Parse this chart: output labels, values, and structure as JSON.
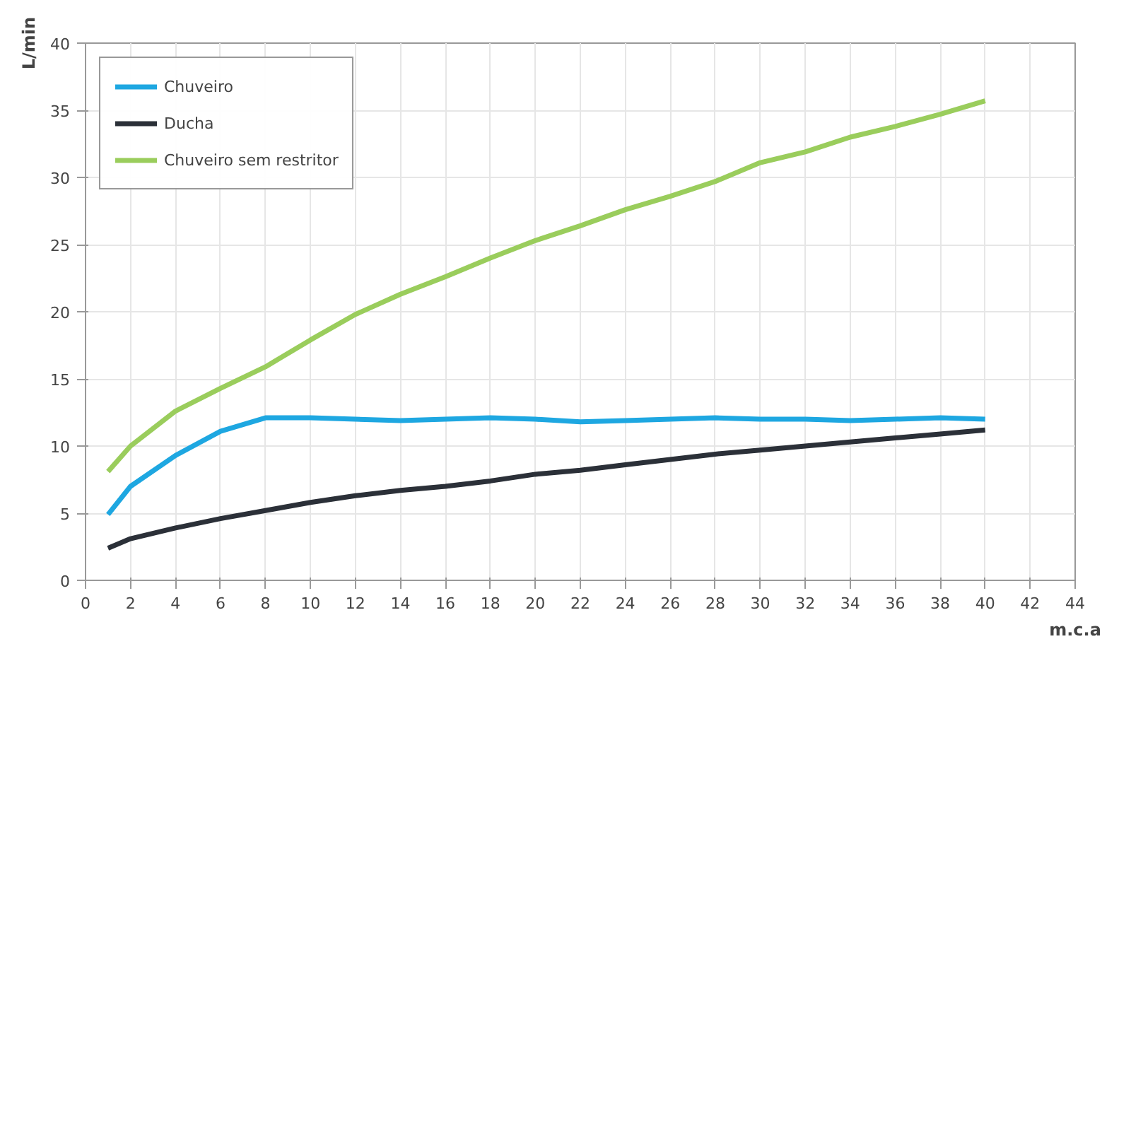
{
  "chart_data": {
    "type": "line",
    "xlabel": "m.c.a",
    "ylabel": "L/min",
    "x": [
      1,
      2,
      4,
      6,
      8,
      10,
      12,
      14,
      16,
      18,
      20,
      22,
      24,
      26,
      28,
      30,
      32,
      34,
      36,
      38,
      40
    ],
    "series": [
      {
        "name": "Chuveiro",
        "color": "#1ea7e1",
        "values": [
          4.9,
          7.0,
          9.3,
          11.1,
          12.1,
          12.1,
          12.0,
          11.9,
          12.0,
          12.1,
          12.0,
          11.8,
          11.9,
          12.0,
          12.1,
          12.0,
          12.0,
          11.9,
          12.0,
          12.1,
          12.0
        ]
      },
      {
        "name": "Ducha",
        "color": "#2b3038",
        "values": [
          2.4,
          3.1,
          3.9,
          4.6,
          5.2,
          5.8,
          6.3,
          6.7,
          7.0,
          7.4,
          7.9,
          8.2,
          8.6,
          9.0,
          9.4,
          9.7,
          10.0,
          10.3,
          10.6,
          10.9,
          11.2
        ]
      },
      {
        "name": "Chuveiro sem restritor",
        "color": "#9acd5c",
        "values": [
          8.1,
          10.0,
          12.6,
          14.3,
          15.9,
          17.9,
          19.8,
          21.3,
          22.6,
          24.0,
          25.3,
          26.4,
          27.6,
          28.6,
          29.7,
          31.1,
          31.9,
          33.0,
          33.8,
          34.7,
          35.7
        ]
      }
    ],
    "xlim": [
      0,
      44
    ],
    "xticks": [
      0,
      2,
      4,
      6,
      8,
      10,
      12,
      14,
      16,
      18,
      20,
      22,
      24,
      26,
      28,
      30,
      32,
      34,
      36,
      38,
      40,
      42,
      44
    ],
    "ylim": [
      0,
      40
    ],
    "yticks": [
      0,
      5,
      10,
      15,
      20,
      25,
      30,
      35,
      40
    ],
    "grid": true,
    "legend": "top left",
    "line_style": "solid",
    "marker": "none"
  }
}
